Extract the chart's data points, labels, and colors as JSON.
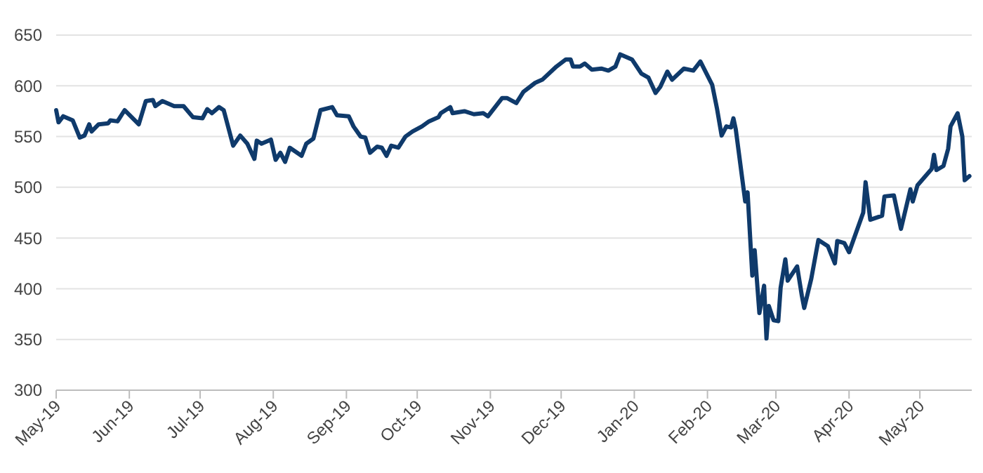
{
  "chart_data": {
    "type": "line",
    "xlim": [
      "2019-05-01",
      "2020-05-23"
    ],
    "xticks": [
      {
        "value": "2019-05-01",
        "label": "May-19"
      },
      {
        "value": "2019-06-01",
        "label": "Jun-19"
      },
      {
        "value": "2019-07-01",
        "label": "Jul-19"
      },
      {
        "value": "2019-08-01",
        "label": "Aug-19"
      },
      {
        "value": "2019-09-01",
        "label": "Sep-19"
      },
      {
        "value": "2019-10-01",
        "label": "Oct-19"
      },
      {
        "value": "2019-11-01",
        "label": "Nov-19"
      },
      {
        "value": "2019-12-01",
        "label": "Dec-19"
      },
      {
        "value": "2020-01-01",
        "label": "Jan-20"
      },
      {
        "value": "2020-02-01",
        "label": "Feb-20"
      },
      {
        "value": "2020-03-01",
        "label": "Mar-20"
      },
      {
        "value": "2020-04-01",
        "label": "Apr-20"
      },
      {
        "value": "2020-05-01",
        "label": "May-20"
      }
    ],
    "ylim": [
      300,
      650
    ],
    "yticks": [
      300,
      350,
      400,
      450,
      500,
      550,
      600,
      650
    ],
    "grid": "y",
    "line_style": "solid",
    "x": [
      "2019-05-01",
      "2019-05-02",
      "2019-05-04",
      "2019-05-08",
      "2019-05-11",
      "2019-05-13",
      "2019-05-15",
      "2019-05-16",
      "2019-05-19",
      "2019-05-23",
      "2019-05-24",
      "2019-05-27",
      "2019-05-30",
      "2019-06-05",
      "2019-06-08",
      "2019-06-11",
      "2019-06-12",
      "2019-06-15",
      "2019-06-20",
      "2019-06-24",
      "2019-06-28",
      "2019-07-02",
      "2019-07-04",
      "2019-07-06",
      "2019-07-09",
      "2019-07-11",
      "2019-07-15",
      "2019-07-18",
      "2019-07-21",
      "2019-07-24",
      "2019-07-25",
      "2019-07-27",
      "2019-07-31",
      "2019-08-02",
      "2019-08-04",
      "2019-08-06",
      "2019-08-08",
      "2019-08-13",
      "2019-08-15",
      "2019-08-18",
      "2019-08-21",
      "2019-08-26",
      "2019-08-28",
      "2019-09-02",
      "2019-09-04",
      "2019-09-07",
      "2019-09-09",
      "2019-09-11",
      "2019-09-14",
      "2019-09-16",
      "2019-09-18",
      "2019-09-20",
      "2019-09-23",
      "2019-09-26",
      "2019-09-29",
      "2019-10-03",
      "2019-10-06",
      "2019-10-10",
      "2019-10-11",
      "2019-10-15",
      "2019-10-16",
      "2019-10-21",
      "2019-10-25",
      "2019-10-29",
      "2019-10-31",
      "2019-11-06",
      "2019-11-08",
      "2019-11-12",
      "2019-11-15",
      "2019-11-20",
      "2019-11-23",
      "2019-11-29",
      "2019-12-03",
      "2019-12-05",
      "2019-12-06",
      "2019-12-09",
      "2019-12-11",
      "2019-12-14",
      "2019-12-18",
      "2019-12-21",
      "2019-12-24",
      "2019-12-26",
      "2019-12-31",
      "2020-01-04",
      "2020-01-07",
      "2020-01-10",
      "2020-01-12",
      "2020-01-15",
      "2020-01-17",
      "2020-01-22",
      "2020-01-26",
      "2020-01-29",
      "2020-02-03",
      "2020-02-05",
      "2020-02-07",
      "2020-02-09",
      "2020-02-11",
      "2020-02-12",
      "2020-02-13",
      "2020-02-17",
      "2020-02-18",
      "2020-02-20",
      "2020-02-21",
      "2020-02-23",
      "2020-02-25",
      "2020-02-26",
      "2020-02-27",
      "2020-02-29",
      "2020-03-02",
      "2020-03-03",
      "2020-03-05",
      "2020-03-06",
      "2020-03-10",
      "2020-03-12",
      "2020-03-13",
      "2020-03-16",
      "2020-03-19",
      "2020-03-23",
      "2020-03-26",
      "2020-03-27",
      "2020-03-30",
      "2020-04-01",
      "2020-04-07",
      "2020-04-08",
      "2020-04-10",
      "2020-04-15",
      "2020-04-16",
      "2020-04-20",
      "2020-04-23",
      "2020-04-27",
      "2020-04-28",
      "2020-04-30",
      "2020-05-06",
      "2020-05-07",
      "2020-05-08",
      "2020-05-11",
      "2020-05-13",
      "2020-05-14",
      "2020-05-17",
      "2020-05-19",
      "2020-05-20",
      "2020-05-22"
    ],
    "series": [
      {
        "color": "#0f3a6b",
        "values": [
          576,
          564,
          570,
          566,
          549,
          551,
          562,
          555,
          562,
          563,
          566,
          565,
          576,
          562,
          585,
          586,
          580,
          585,
          580,
          580,
          569,
          568,
          577,
          573,
          579,
          576,
          541,
          551,
          543,
          528,
          546,
          543,
          547,
          527,
          534,
          525,
          539,
          531,
          543,
          548,
          576,
          579,
          571,
          570,
          560,
          550,
          549,
          534,
          540,
          539,
          531,
          541,
          539,
          550,
          555,
          560,
          565,
          569,
          573,
          579,
          573,
          575,
          572,
          573,
          570,
          588,
          588,
          583,
          594,
          603,
          606,
          619,
          626,
          626,
          619,
          619,
          622,
          616,
          617,
          615,
          619,
          631,
          626,
          612,
          608,
          593,
          599,
          614,
          606,
          617,
          615,
          624,
          601,
          578,
          551,
          560,
          559,
          568,
          557,
          486,
          495,
          413,
          438,
          376,
          403,
          351,
          383,
          369,
          368,
          401,
          429,
          408,
          422,
          393,
          381,
          410,
          448,
          442,
          425,
          447,
          445,
          436,
          475,
          505,
          468,
          472,
          491,
          492,
          459,
          498,
          486,
          502,
          518,
          532,
          517,
          521,
          538,
          560,
          573,
          550,
          507,
          511
        ]
      }
    ]
  }
}
